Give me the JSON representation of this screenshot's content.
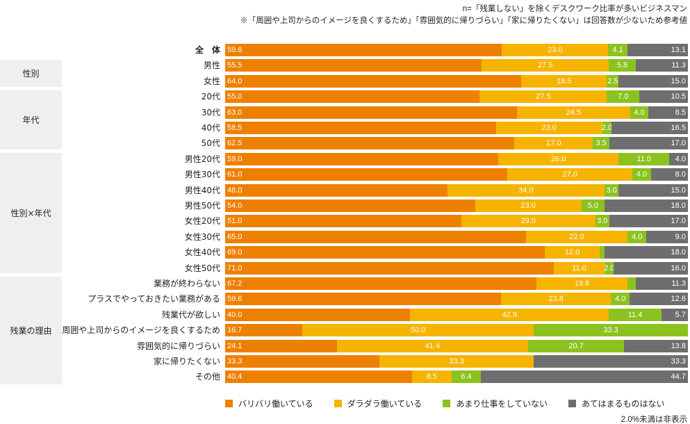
{
  "notes": {
    "n": "n=「残業しない」を除くデスクワーク比率が多いビジネスマン",
    "reference": "※「周囲や上司からのイメージを良くするため」「雰囲気的に帰りづらい」「家に帰りたくない」は回答数が少ないため参考値",
    "threshold": "2.0%未満は非表示"
  },
  "groups": [
    {
      "label": "性別"
    },
    {
      "label": "年代"
    },
    {
      "label": "性別×年代"
    },
    {
      "label": "残業の理由"
    }
  ],
  "colors": [
    "#ee8000",
    "#f6b300",
    "#8cc21f",
    "#6e6e6e"
  ],
  "chart_data": {
    "type": "bar",
    "orientation": "horizontal",
    "stacked": true,
    "xlim": [
      0,
      100
    ],
    "unit": "%",
    "legend_position": "bottom",
    "series": [
      {
        "name": "バリバリ働いている"
      },
      {
        "name": "ダラダラ働いている"
      },
      {
        "name": "あまり仕事をしていない"
      },
      {
        "name": "あてはまるものはない"
      }
    ],
    "rows": [
      {
        "label": "全　体",
        "values": [
          59.8,
          23.0,
          4.1,
          13.1
        ],
        "labels": [
          "59.8",
          "23.0",
          "4.1",
          "13.1"
        ]
      },
      {
        "label": "男性",
        "values": [
          55.5,
          27.5,
          5.8,
          11.3
        ],
        "labels": [
          "55.5",
          "27.5",
          "5.8",
          "11.3"
        ]
      },
      {
        "label": "女性",
        "values": [
          64.0,
          18.5,
          2.5,
          15.0
        ],
        "labels": [
          "64.0",
          "18.5",
          "2.5",
          "15.0"
        ]
      },
      {
        "label": "20代",
        "values": [
          55.0,
          27.5,
          7.0,
          10.5
        ],
        "labels": [
          "55.0",
          "27.5",
          "7.0",
          "10.5"
        ]
      },
      {
        "label": "30代",
        "values": [
          63.0,
          24.5,
          4.0,
          8.5
        ],
        "labels": [
          "63.0",
          "24.5",
          "4.0",
          "8.5"
        ]
      },
      {
        "label": "40代",
        "values": [
          58.5,
          23.0,
          2.0,
          16.5
        ],
        "labels": [
          "58.5",
          "23.0",
          "2.0",
          "16.5"
        ]
      },
      {
        "label": "50代",
        "values": [
          62.5,
          17.0,
          3.5,
          17.0
        ],
        "labels": [
          "62.5",
          "17.0",
          "3.5",
          "17.0"
        ]
      },
      {
        "label": "男性20代",
        "values": [
          59.0,
          26.0,
          11.0,
          4.0
        ],
        "labels": [
          "59.0",
          "26.0",
          "11.0",
          "4.0"
        ]
      },
      {
        "label": "男性30代",
        "values": [
          61.0,
          27.0,
          4.0,
          8.0
        ],
        "labels": [
          "61.0",
          "27.0",
          "4.0",
          "8.0"
        ]
      },
      {
        "label": "男性40代",
        "values": [
          48.0,
          34.0,
          3.0,
          15.0
        ],
        "labels": [
          "48.0",
          "34.0",
          "3.0",
          "15.0"
        ]
      },
      {
        "label": "男性50代",
        "values": [
          54.0,
          23.0,
          5.0,
          18.0
        ],
        "labels": [
          "54.0",
          "23.0",
          "5.0",
          "18.0"
        ]
      },
      {
        "label": "女性20代",
        "values": [
          51.0,
          29.0,
          3.0,
          17.0
        ],
        "labels": [
          "51.0",
          "29.0",
          "3.0",
          "17.0"
        ]
      },
      {
        "label": "女性30代",
        "values": [
          65.0,
          22.0,
          4.0,
          9.0
        ],
        "labels": [
          "65.0",
          "22.0",
          "4.0",
          "9.0"
        ]
      },
      {
        "label": "女性40代",
        "values": [
          69.0,
          12.0,
          1.0,
          18.0
        ],
        "labels": [
          "69.0",
          "12.0",
          "",
          "18.0"
        ]
      },
      {
        "label": "女性50代",
        "values": [
          71.0,
          11.0,
          2.0,
          16.0
        ],
        "labels": [
          "71.0",
          "11.0",
          "2.0",
          "16.0"
        ]
      },
      {
        "label": "業務が終わらない",
        "values": [
          67.2,
          19.8,
          1.7,
          11.3
        ],
        "labels": [
          "67.2",
          "19.8",
          "",
          "11.3"
        ]
      },
      {
        "label": "プラスでやっておきたい業務がある",
        "values": [
          59.6,
          23.8,
          4.0,
          12.6
        ],
        "labels": [
          "59.6",
          "23.8",
          "4.0",
          "12.6"
        ]
      },
      {
        "label": "残業代が欲しい",
        "values": [
          40.0,
          42.9,
          11.4,
          5.7
        ],
        "labels": [
          "40.0",
          "42.9",
          "11.4",
          "5.7"
        ]
      },
      {
        "label": "周囲や上司からのイメージを良くするため",
        "values": [
          16.7,
          50.0,
          33.3,
          0
        ],
        "labels": [
          "16.7",
          "50.0",
          "33.3",
          ""
        ]
      },
      {
        "label": "雰囲気的に帰りづらい",
        "values": [
          24.1,
          41.4,
          20.7,
          13.8
        ],
        "labels": [
          "24.1",
          "41.4",
          "20.7",
          "13.8"
        ]
      },
      {
        "label": "家に帰りたくない",
        "values": [
          33.3,
          33.3,
          0,
          33.3
        ],
        "labels": [
          "33.3",
          "33.3",
          "",
          "33.3"
        ]
      },
      {
        "label": "その他",
        "values": [
          40.4,
          8.5,
          6.4,
          44.7
        ],
        "labels": [
          "40.4",
          "8.5",
          "6.4",
          "44.7"
        ]
      }
    ]
  }
}
